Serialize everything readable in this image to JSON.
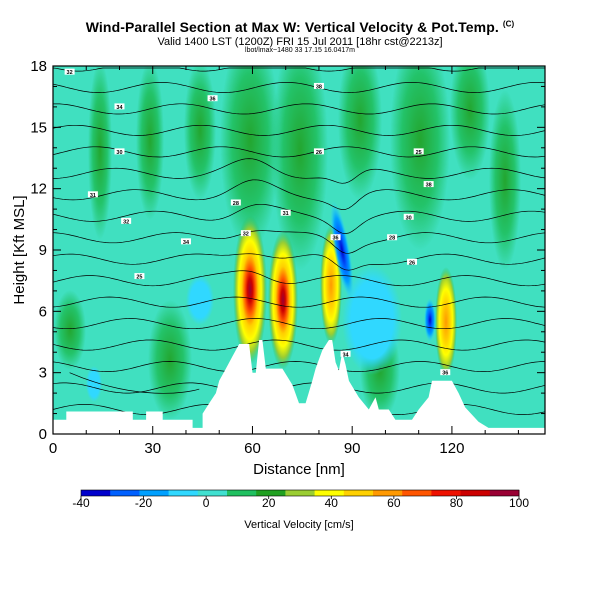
{
  "header": {
    "title": "Wind-Parallel Section at Max W: Vertical Velocity & Pot.Temp.",
    "title_mark": "(C)",
    "valid_line": "Valid 1400 LST (1200Z) FRI 15 Jul 2011 [18hr cst@2213z]",
    "info_line": "lbot/lmax~1480 33 17.15 16.0417m"
  },
  "chart_data": {
    "type": "heatmap",
    "xlabel": "Distance [nm]",
    "ylabel": "Height [Kft MSL]",
    "xlim": [
      0,
      148
    ],
    "ylim": [
      0,
      18
    ],
    "xticks": [
      0,
      30,
      60,
      90,
      120
    ],
    "yticks": [
      0,
      3,
      6,
      9,
      12,
      15,
      18
    ],
    "colorbar": {
      "label": "Vertical Velocity [cm/s]",
      "ticks": [
        -40,
        -20,
        0,
        20,
        40,
        60,
        80,
        100
      ],
      "range": [
        -40,
        100
      ],
      "colors": [
        "#0000cc",
        "#0060ff",
        "#00a0ff",
        "#30d8ff",
        "#40e0d0",
        "#20c060",
        "#20a020",
        "#9acd32",
        "#ffff00",
        "#ffd000",
        "#ff9900",
        "#ff5500",
        "#ee1100",
        "#cc0000",
        "#990033"
      ]
    },
    "field_background": "#40e0c0",
    "terrain": [
      [
        0,
        0.7
      ],
      [
        4,
        0.7
      ],
      [
        4,
        1.1
      ],
      [
        24,
        1.1
      ],
      [
        24,
        0.7
      ],
      [
        28,
        0.7
      ],
      [
        28,
        1.1
      ],
      [
        33,
        1.1
      ],
      [
        33,
        0.7
      ],
      [
        42,
        0.7
      ],
      [
        42,
        0.3
      ],
      [
        45,
        0.3
      ],
      [
        45,
        1.0
      ],
      [
        47,
        1.5
      ],
      [
        49,
        2.0
      ],
      [
        50,
        2.6
      ],
      [
        52,
        3.2
      ],
      [
        54,
        3.8
      ],
      [
        56,
        4.4
      ],
      [
        59,
        4.4
      ],
      [
        60,
        3.0
      ],
      [
        61,
        3.0
      ],
      [
        62,
        4.6
      ],
      [
        63,
        4.6
      ],
      [
        64,
        3.2
      ],
      [
        69,
        3.2
      ],
      [
        72,
        2.4
      ],
      [
        74,
        1.5
      ],
      [
        76,
        1.5
      ],
      [
        78,
        2.6
      ],
      [
        79,
        3.2
      ],
      [
        81,
        4.1
      ],
      [
        83,
        4.6
      ],
      [
        84,
        4.6
      ],
      [
        85,
        3.5
      ],
      [
        86,
        3.1
      ],
      [
        87,
        4.0
      ],
      [
        88,
        3.4
      ],
      [
        89,
        2.6
      ],
      [
        92,
        1.8
      ],
      [
        95,
        1.2
      ],
      [
        97,
        1.8
      ],
      [
        98,
        1.2
      ],
      [
        101,
        1.2
      ],
      [
        103,
        0.7
      ],
      [
        108,
        0.7
      ],
      [
        110,
        1.2
      ],
      [
        113,
        1.8
      ],
      [
        114,
        2.6
      ],
      [
        120,
        2.6
      ],
      [
        122,
        2.0
      ],
      [
        124,
        1.3
      ],
      [
        128,
        0.6
      ],
      [
        131,
        0.3
      ],
      [
        148,
        0.3
      ]
    ],
    "theta_contour_levels": [
      298,
      300,
      302,
      304,
      306,
      308,
      310,
      312,
      314,
      316,
      318,
      320,
      322,
      324,
      326,
      328,
      330
    ],
    "theta_labels_visible": [
      "32",
      "34",
      "36",
      "38",
      "30",
      "28",
      "26",
      "25",
      "31"
    ],
    "updraft_cores": [
      {
        "center": [
          60,
          7.0
        ],
        "max_w": 90
      },
      {
        "center": [
          70,
          6.3
        ],
        "max_w": 95
      },
      {
        "center": [
          85,
          7.6
        ],
        "max_w": 70
      },
      {
        "center": [
          118,
          6.0
        ],
        "max_w": 55
      }
    ],
    "downdraft_cores": [
      {
        "center": [
          88,
          8.4
        ],
        "min_w": -40
      },
      {
        "center": [
          108,
          5.6
        ],
        "min_w": -25
      }
    ]
  }
}
